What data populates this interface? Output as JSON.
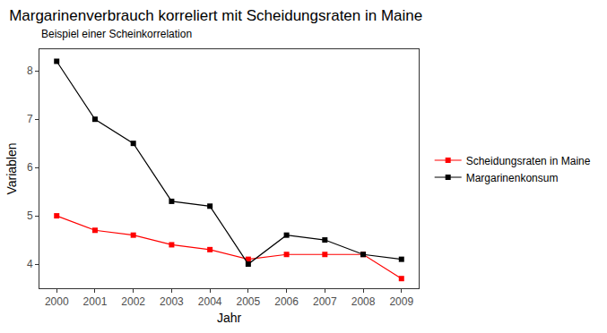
{
  "chart_data": {
    "type": "line",
    "title": "Margarinenverbrauch korreliert mit Scheidungsraten in Maine",
    "subtitle": "Beispiel einer Scheinkorrelation",
    "x_label": "Jahr",
    "y_label": "Variablen",
    "x": [
      2000,
      2001,
      2002,
      2003,
      2004,
      2005,
      2006,
      2007,
      2008,
      2009
    ],
    "series": [
      {
        "name": "Scheidungsraten in Maine",
        "color": "#ff0000",
        "marker": "square",
        "line_style": "solid",
        "values": [
          5.0,
          4.7,
          4.6,
          4.4,
          4.3,
          4.1,
          4.2,
          4.2,
          4.2,
          3.7
        ]
      },
      {
        "name": "Margarinenkonsum",
        "color": "#000000",
        "marker": "square",
        "line_style": "solid",
        "values": [
          8.2,
          7.0,
          6.5,
          5.3,
          5.2,
          4.0,
          4.6,
          4.5,
          4.2,
          4.1
        ]
      }
    ],
    "xlim": [
      1999.55,
      2009.45
    ],
    "xticks": [
      2000,
      2001,
      2002,
      2003,
      2004,
      2005,
      2006,
      2007,
      2008,
      2009
    ],
    "ylim": [
      3.5,
      8.45
    ],
    "yticks": [
      4,
      5,
      6,
      7,
      8
    ],
    "grid": false,
    "legend": "right"
  }
}
